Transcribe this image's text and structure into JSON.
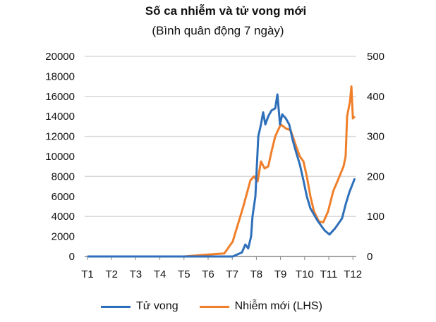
{
  "chart_data": {
    "type": "line",
    "title": "Số ca nhiễm và tử vong mới",
    "subtitle": "(Bình quân động 7 ngày)",
    "x_tick_labels": [
      "T1",
      "T2",
      "T3",
      "T4",
      "T5",
      "T6",
      "T7",
      "T8",
      "T9",
      "T10",
      "T11",
      "T12"
    ],
    "y_left": {
      "range": [
        0,
        20000
      ],
      "ticks": [
        "0",
        "2000",
        "4000",
        "6000",
        "8000",
        "10000",
        "12000",
        "14000",
        "16000",
        "18000",
        "20000"
      ]
    },
    "y_right": {
      "range": [
        0,
        500
      ],
      "ticks": [
        "0",
        "100",
        "200",
        "300",
        "400",
        "500"
      ]
    },
    "grid": true,
    "legend_placement": "bottom",
    "series": [
      {
        "name": "Tử vong",
        "axis": "right",
        "color": "#2e6fba",
        "x": [
          1,
          5,
          6,
          7.02,
          7.4,
          7.54,
          7.66,
          7.78,
          7.84,
          7.96,
          8.08,
          8.19,
          8.28,
          8.37,
          8.49,
          8.63,
          8.78,
          8.87,
          8.98,
          9.07,
          9.22,
          9.36,
          9.51,
          9.65,
          9.8,
          9.95,
          10.09,
          10.24,
          10.53,
          10.83,
          11.03,
          11.26,
          11.55,
          11.7,
          11.85,
          12.08
        ],
        "y": [
          0,
          0,
          0,
          0,
          10,
          30,
          20,
          50,
          100,
          150,
          300,
          330,
          360,
          330,
          350,
          365,
          370,
          405,
          330,
          355,
          345,
          330,
          290,
          260,
          230,
          190,
          150,
          120,
          90,
          65,
          55,
          70,
          95,
          130,
          160,
          195
        ]
      },
      {
        "name": "Nhiễm mới (LHS)",
        "axis": "left",
        "color": "#f07f2a",
        "x": [
          1,
          5,
          6,
          6.67,
          7.02,
          7.46,
          7.75,
          7.9,
          8.05,
          8.19,
          8.34,
          8.49,
          8.63,
          8.78,
          9.01,
          9.22,
          9.42,
          9.65,
          9.8,
          9.95,
          10.09,
          10.24,
          10.39,
          10.59,
          10.77,
          10.97,
          11.18,
          11.41,
          11.61,
          11.7,
          11.76,
          11.88,
          11.94,
          12.0,
          12.08
        ],
        "y": [
          0,
          0,
          200,
          300,
          1500,
          5000,
          7600,
          8000,
          7500,
          9500,
          8800,
          9000,
          10500,
          12000,
          13200,
          12800,
          12600,
          11000,
          10000,
          9500,
          8000,
          6000,
          4500,
          3500,
          3400,
          4500,
          6500,
          7800,
          9000,
          10000,
          14000,
          15500,
          17000,
          13800,
          14000
        ]
      }
    ]
  }
}
